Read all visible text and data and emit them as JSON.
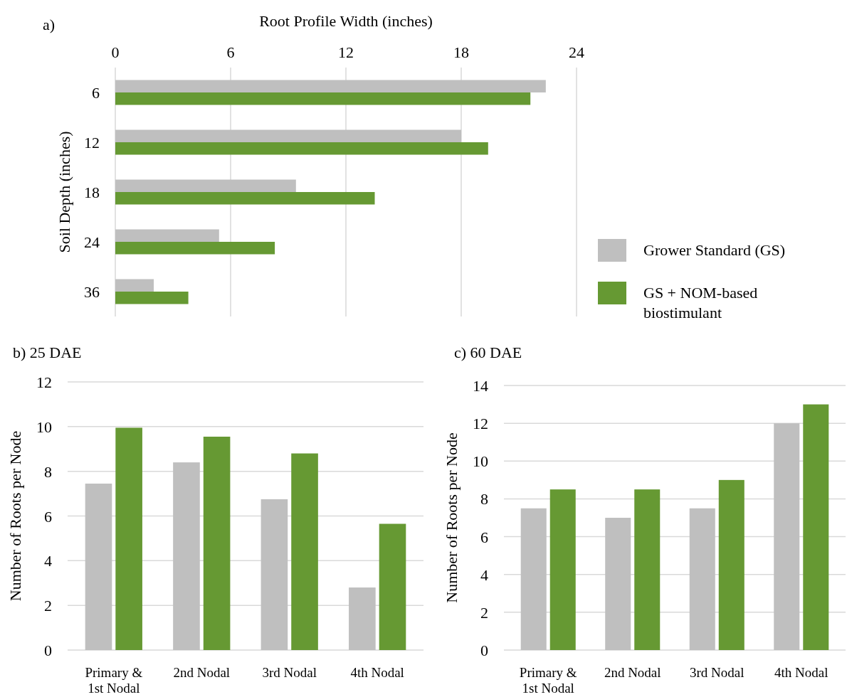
{
  "chart_data": [
    {
      "type": "bar",
      "title": "a)",
      "orientation": "horizontal",
      "xlabel": "Root Profile Width (inches)",
      "ylabel": "Soil Depth (inches)",
      "categories": [
        "6",
        "12",
        "18",
        "24",
        "36"
      ],
      "xlim": [
        0,
        24
      ],
      "xticks": [
        0,
        6,
        12,
        18,
        24
      ],
      "grid": "x",
      "legend": "right",
      "series": [
        {
          "name": "Grower Standard (GS)",
          "color": "#bfbfbf",
          "values": [
            22.4,
            18.0,
            9.4,
            5.4,
            2.0
          ]
        },
        {
          "name": "GS + NOM-based biostimulant",
          "color": "#669933",
          "values": [
            21.6,
            19.4,
            13.5,
            8.3,
            3.8
          ]
        }
      ]
    },
    {
      "type": "bar",
      "title": "b) 25 DAE",
      "ylabel": "Number of Roots per Node",
      "categories": [
        "Primary & 1st Nodal",
        "2nd Nodal",
        "3rd Nodal",
        "4th Nodal"
      ],
      "ylim": [
        0,
        12
      ],
      "yticks": [
        0,
        2,
        4,
        6,
        8,
        10,
        12
      ],
      "grid": "y",
      "series": [
        {
          "color": "#bfbfbf",
          "values": [
            7.45,
            8.4,
            6.75,
            2.8
          ]
        },
        {
          "color": "#669933",
          "values": [
            9.95,
            9.55,
            8.8,
            5.65
          ]
        }
      ]
    },
    {
      "type": "bar",
      "title": "c) 60 DAE",
      "ylabel": "Number of Roots per Node",
      "categories": [
        "Primary & 1st Nodal",
        "2nd Nodal",
        "3rd Nodal",
        "4th Nodal"
      ],
      "ylim": [
        0,
        14
      ],
      "yticks": [
        0,
        2,
        4,
        6,
        8,
        10,
        12,
        14
      ],
      "grid": "y",
      "series": [
        {
          "color": "#bfbfbf",
          "values": [
            7.5,
            7.0,
            7.5,
            12.0
          ]
        },
        {
          "color": "#669933",
          "values": [
            8.5,
            8.5,
            9.0,
            13.0
          ]
        }
      ]
    }
  ]
}
